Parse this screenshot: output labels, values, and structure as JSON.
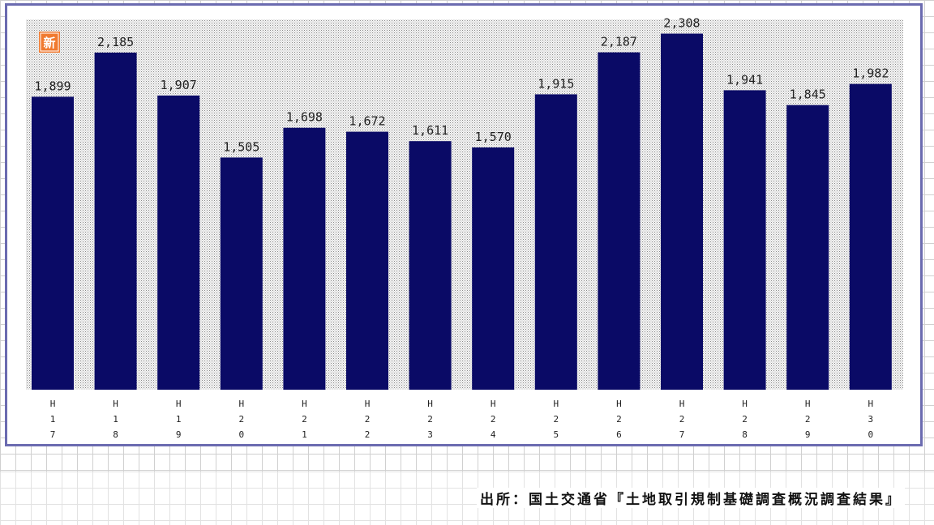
{
  "badge": {
    "text": "新",
    "color": "#f07a30"
  },
  "source": {
    "text": "出所：国土交通省『土地取引規制基礎調査概況調査結果』"
  },
  "chart_data": {
    "type": "bar",
    "categories": [
      "H17",
      "H18",
      "H19",
      "H20",
      "H21",
      "H22",
      "H23",
      "H24",
      "H25",
      "H26",
      "H27",
      "H28",
      "H29",
      "H30"
    ],
    "category_chars": [
      [
        "H",
        "1",
        "7"
      ],
      [
        "H",
        "1",
        "8"
      ],
      [
        "H",
        "1",
        "9"
      ],
      [
        "H",
        "2",
        "0"
      ],
      [
        "H",
        "2",
        "1"
      ],
      [
        "H",
        "2",
        "2"
      ],
      [
        "H",
        "2",
        "3"
      ],
      [
        "H",
        "2",
        "4"
      ],
      [
        "H",
        "2",
        "5"
      ],
      [
        "H",
        "2",
        "6"
      ],
      [
        "H",
        "2",
        "7"
      ],
      [
        "H",
        "2",
        "8"
      ],
      [
        "H",
        "2",
        "9"
      ],
      [
        "H",
        "3",
        "0"
      ]
    ],
    "values": [
      1899,
      2185,
      1907,
      1505,
      1698,
      1672,
      1611,
      1570,
      1915,
      2187,
      2308,
      1941,
      1845,
      1982
    ],
    "value_labels": [
      "1,899",
      "2,185",
      "1,907",
      "1,505",
      "1,698",
      "1,672",
      "1,611",
      "1,570",
      "1,915",
      "2,187",
      "2,308",
      "1,941",
      "1,845",
      "1,982"
    ],
    "ylim": [
      0,
      2400
    ],
    "title": "",
    "xlabel": "",
    "ylabel": "",
    "bar_color": "#0a0a66",
    "plot_background": "dotted-gray",
    "grid": false,
    "legend": "none"
  }
}
